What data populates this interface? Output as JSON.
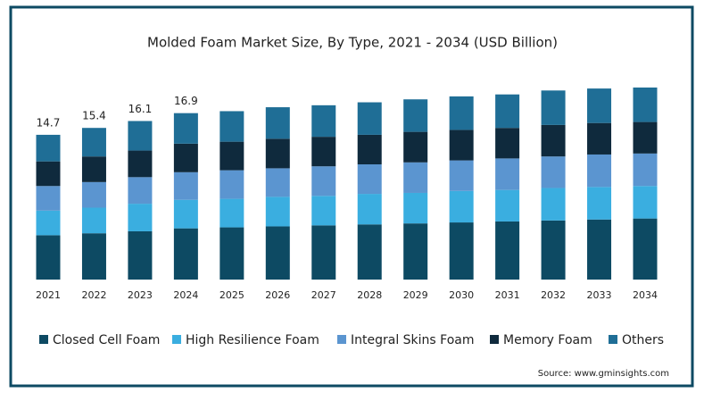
{
  "chart_data": {
    "type": "stacked_bar",
    "title": "Molded Foam  Market Size, By Type, 2021 - 2034 (USD Billion)",
    "categories": [
      "2021",
      "2022",
      "2023",
      "2024",
      "2025",
      "2026",
      "2027",
      "2028",
      "2029",
      "2030",
      "2031",
      "2032",
      "2033",
      "2034"
    ],
    "series": [
      {
        "name": "Closed Cell Foam",
        "color": "#0d4a63",
        "values": [
          4.5,
          4.7,
          4.9,
          5.2,
          5.3,
          5.4,
          5.5,
          5.6,
          5.7,
          5.8,
          5.9,
          6.0,
          6.1,
          6.2
        ]
      },
      {
        "name": "High Resilience Foam",
        "color": "#3aaee0",
        "values": [
          2.5,
          2.6,
          2.8,
          2.9,
          2.9,
          3.0,
          3.0,
          3.1,
          3.1,
          3.2,
          3.2,
          3.3,
          3.3,
          3.3
        ]
      },
      {
        "name": "Integral Skins Foam",
        "color": "#5b95d0",
        "values": [
          2.5,
          2.6,
          2.7,
          2.8,
          2.9,
          2.9,
          3.0,
          3.0,
          3.1,
          3.1,
          3.2,
          3.2,
          3.3,
          3.3
        ]
      },
      {
        "name": "Memory Foam",
        "color": "#0f2a3d",
        "values": [
          2.5,
          2.6,
          2.7,
          2.9,
          2.9,
          3.0,
          3.0,
          3.0,
          3.1,
          3.1,
          3.1,
          3.2,
          3.2,
          3.2
        ]
      },
      {
        "name": "Others",
        "color": "#1f6e96",
        "values": [
          2.7,
          2.9,
          3.0,
          3.1,
          3.1,
          3.2,
          3.2,
          3.3,
          3.3,
          3.4,
          3.4,
          3.5,
          3.5,
          3.5
        ]
      }
    ],
    "totals": [
      14.7,
      15.4,
      16.1,
      16.9
    ],
    "source": "Source: www.gminsights.com"
  }
}
